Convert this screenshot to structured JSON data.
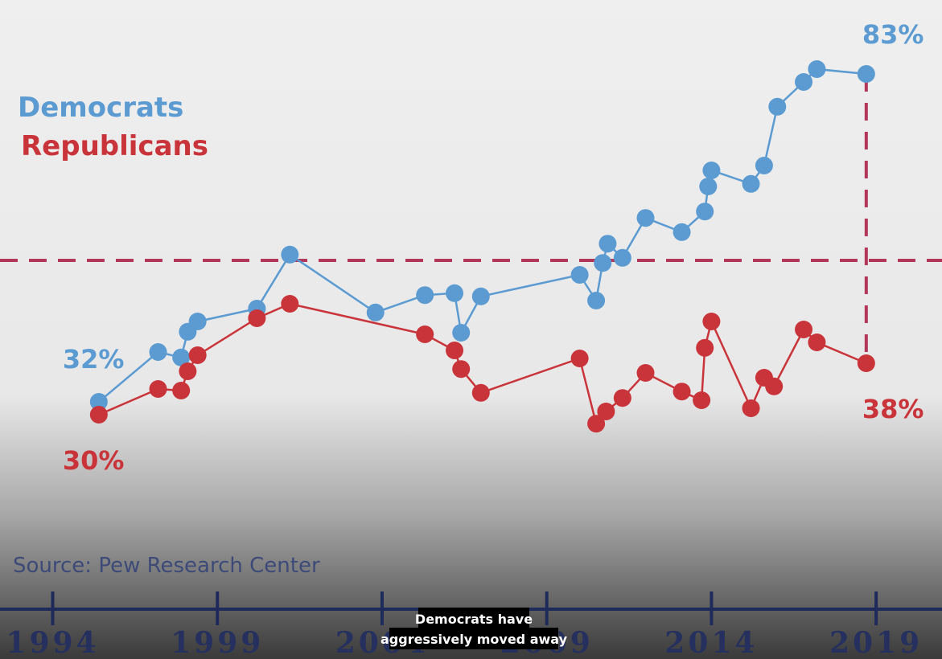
{
  "chart_data": {
    "type": "line",
    "series": [
      {
        "name": "Democrats",
        "color": "#5b9bd1",
        "x": [
          1995.4,
          1997.2,
          1997.9,
          1998.1,
          1998.4,
          2000.2,
          2001.2,
          2003.8,
          2005.3,
          2006.2,
          2006.4,
          2007.0,
          2010.0,
          2010.5,
          2010.7,
          2010.85,
          2011.3,
          2012.0,
          2013.1,
          2013.8,
          2013.9,
          2014.0,
          2015.2,
          2015.6,
          2016.0,
          2016.8,
          2017.2,
          2018.7
        ],
        "values": [
          32,
          39.75,
          38.9,
          42.9,
          44.5,
          46.5,
          54.9,
          45.9,
          48.6,
          48.9,
          42.75,
          48.4,
          51.75,
          47.75,
          53.6,
          56.6,
          54.4,
          60.6,
          58.4,
          61.6,
          65.5,
          68,
          65.9,
          68.75,
          77.9,
          81.75,
          83.75,
          83
        ],
        "value_labels": [
          "32%",
          null,
          null,
          null,
          null,
          null,
          null,
          null,
          null,
          null,
          null,
          null,
          null,
          null,
          null,
          null,
          null,
          null,
          null,
          null,
          null,
          null,
          null,
          null,
          null,
          null,
          null,
          "83%"
        ]
      },
      {
        "name": "Republicans",
        "color": "#c9343a",
        "x": [
          1995.4,
          1997.2,
          1997.9,
          1998.1,
          1998.4,
          2000.2,
          2001.2,
          2005.3,
          2006.2,
          2006.4,
          2007.0,
          2010.0,
          2010.5,
          2010.8,
          2011.3,
          2012.0,
          2013.1,
          2013.7,
          2013.8,
          2014.0,
          2015.2,
          2015.6,
          2015.9,
          2016.8,
          2017.2,
          2018.7
        ],
        "values": [
          30,
          34,
          33.75,
          36.75,
          39.25,
          45,
          47.25,
          42.5,
          40,
          37.1,
          33.4,
          38.75,
          28.6,
          30.5,
          32.6,
          36.5,
          33.6,
          32.25,
          40.4,
          44.5,
          31,
          35.75,
          34.4,
          43.25,
          41.25,
          38
        ],
        "value_labels": [
          "30%",
          null,
          null,
          null,
          null,
          null,
          null,
          null,
          null,
          null,
          null,
          null,
          null,
          null,
          null,
          null,
          null,
          null,
          null,
          null,
          null,
          null,
          null,
          null,
          null,
          "38%"
        ]
      }
    ],
    "xlim": [
      1992.4,
      2021
    ],
    "xticks": [
      1994,
      1999,
      2004,
      2009,
      2014,
      2019
    ],
    "ylim": [
      0,
      94
    ],
    "reference_line": 54,
    "legend": "upper left",
    "source": "Source: Pew Research Center"
  },
  "video_caption": {
    "lines": [
      "Democrats have",
      "aggressively moved away"
    ]
  }
}
